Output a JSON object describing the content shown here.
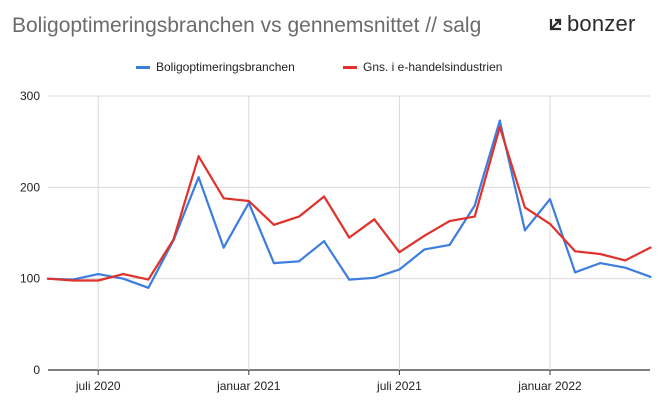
{
  "title": "Boligoptimeringsbranchen vs gennemsnittet // salg",
  "logo": {
    "icon": "bonzer-arrow-icon",
    "text": "bonzer"
  },
  "chart_data": {
    "type": "line",
    "x": [
      "2020-05",
      "2020-06",
      "2020-07",
      "2020-08",
      "2020-09",
      "2020-10",
      "2020-11",
      "2020-12",
      "2021-01",
      "2021-02",
      "2021-03",
      "2021-04",
      "2021-05",
      "2021-06",
      "2021-07",
      "2021-08",
      "2021-09",
      "2021-10",
      "2021-11",
      "2021-12",
      "2022-01",
      "2022-02",
      "2022-03",
      "2022-04",
      "2022-05"
    ],
    "series": [
      {
        "name": "Boligoptimeringsbranchen",
        "color": "#3d7de0",
        "values": [
          100,
          99,
          105,
          100,
          90,
          142,
          211,
          134,
          183,
          117,
          119,
          141,
          99,
          101,
          110,
          132,
          137,
          180,
          273,
          153,
          187,
          107,
          117,
          112,
          102
        ]
      },
      {
        "name": "Gns. i e-handelsindustrien",
        "color": "#e0312b",
        "values": [
          100,
          98,
          98,
          105,
          99,
          143,
          234,
          188,
          185,
          159,
          168,
          190,
          145,
          165,
          129,
          147,
          163,
          168,
          266,
          178,
          160,
          130,
          127,
          120,
          134
        ]
      }
    ],
    "xticks": [
      "juli 2020",
      "januar 2021",
      "juli 2021",
      "januar 2022"
    ],
    "xtick_positions": [
      "2020-07",
      "2021-01",
      "2021-07",
      "2022-01"
    ],
    "yticks": [
      0,
      100,
      200,
      300
    ],
    "ylim": [
      0,
      300
    ],
    "xlabel": "",
    "ylabel": "",
    "legend_position": "top",
    "grid": true
  }
}
